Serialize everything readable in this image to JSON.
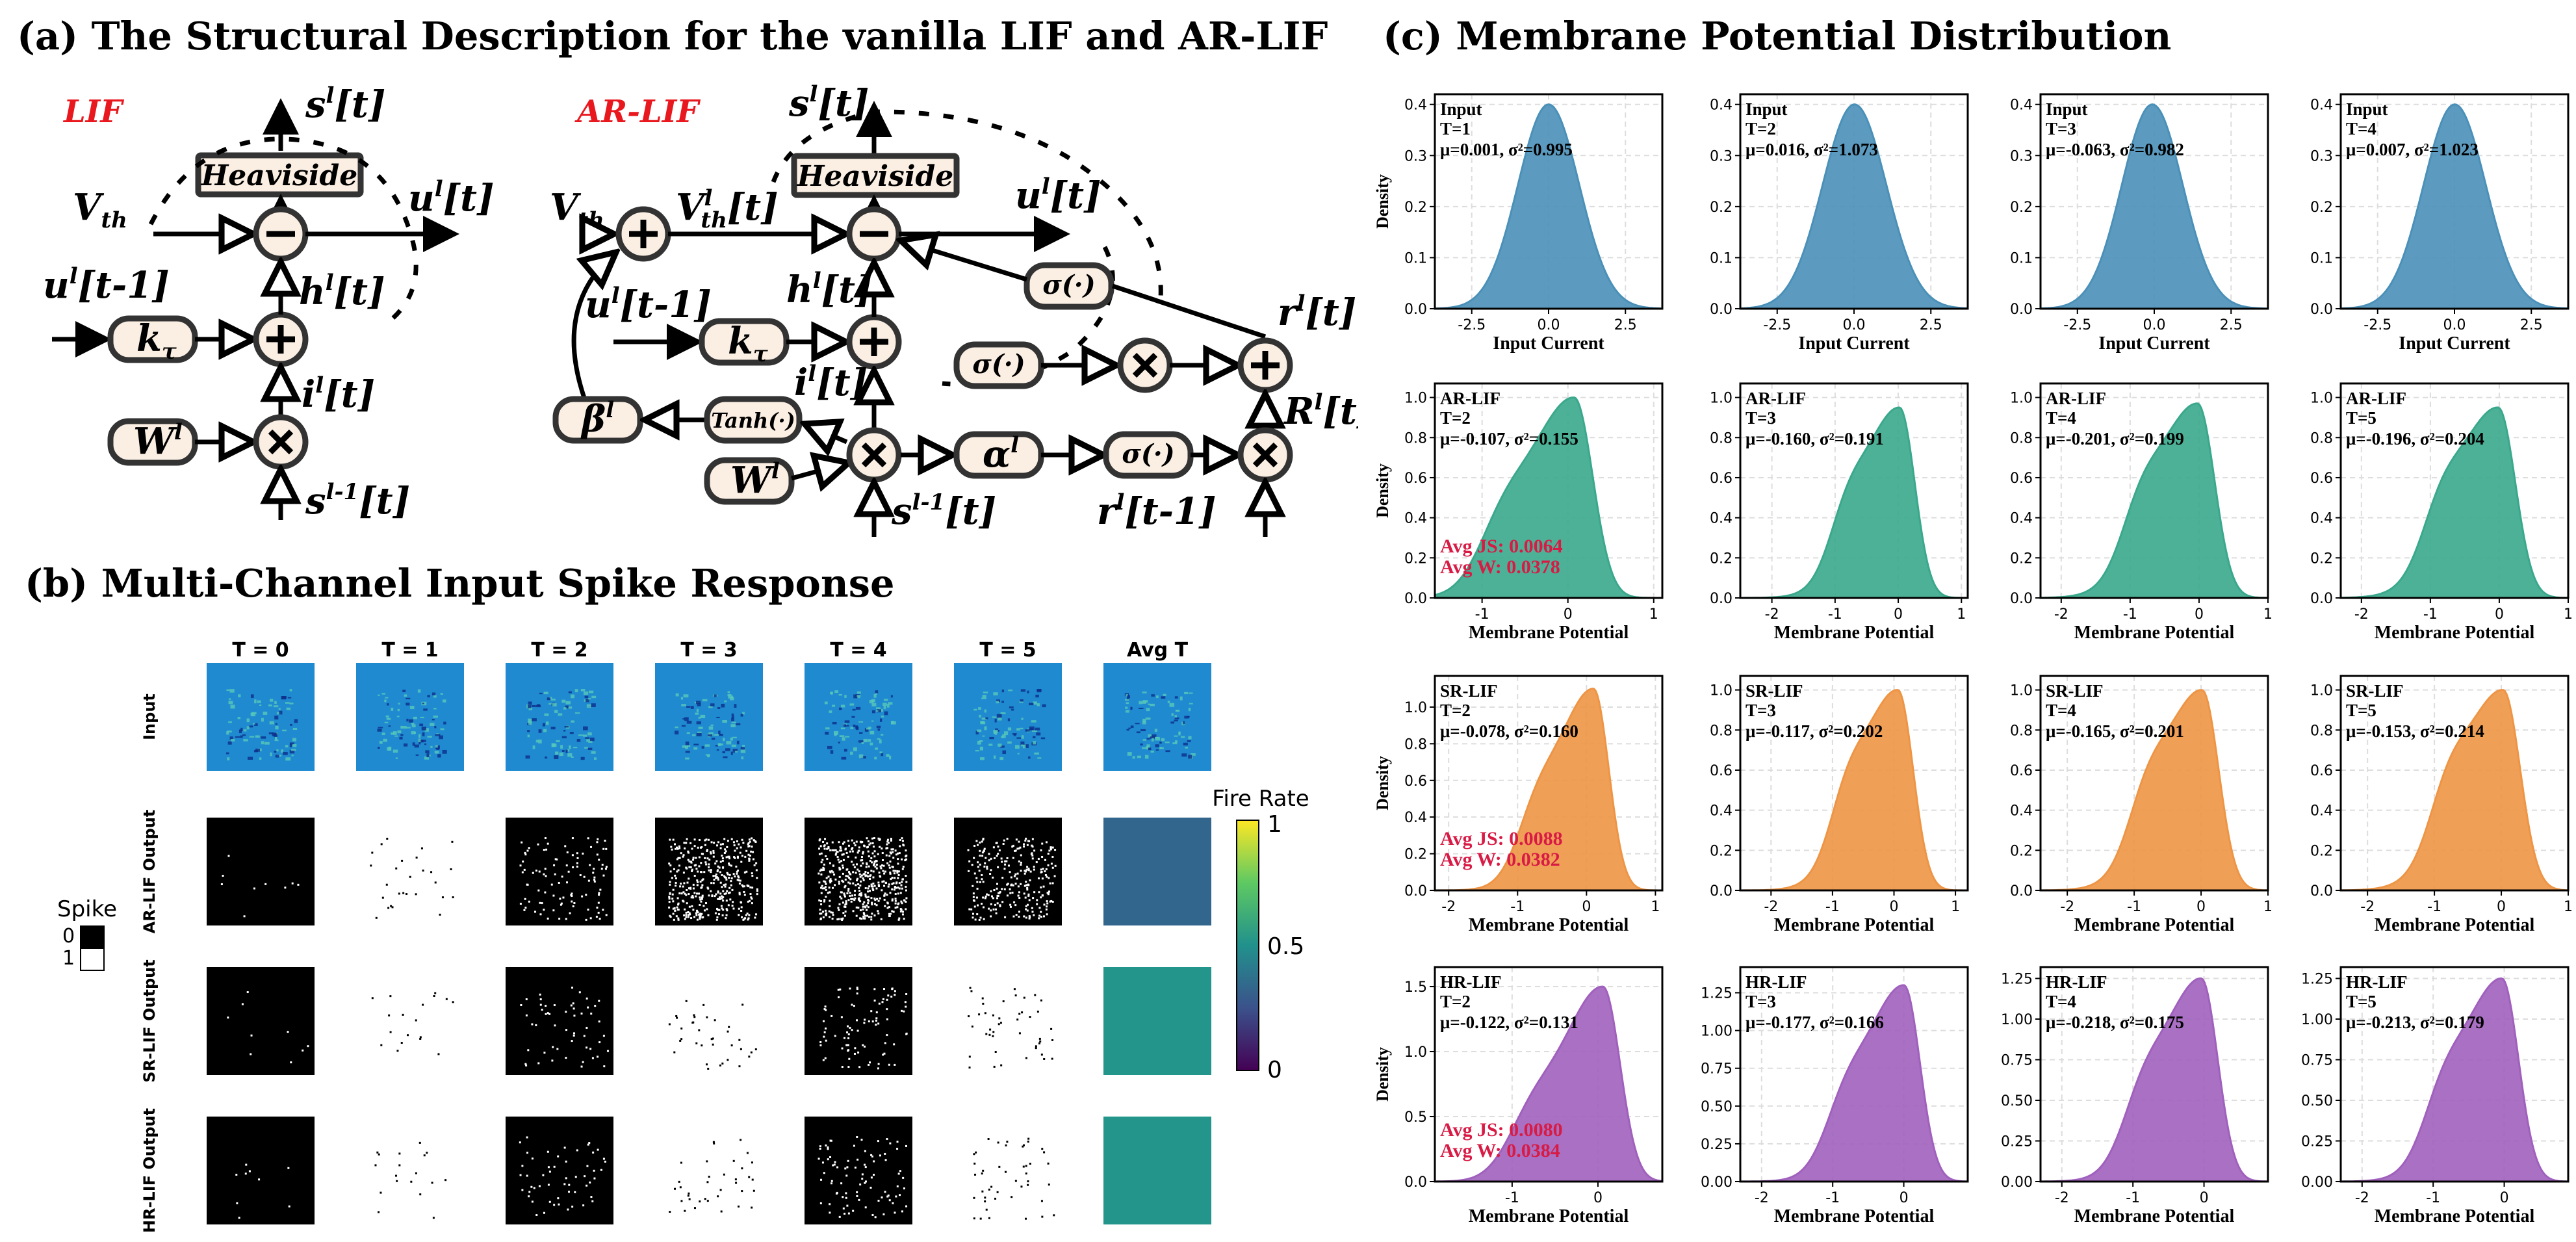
{
  "panel_a": {
    "title": "(a) The Structural Description for the vanilla LIF and AR-LIF",
    "lif": {
      "label": "LIF",
      "heaviside": "Heaviside",
      "vth": "V",
      "vth_sub": "th",
      "s_out": "s",
      "s_out_sup": "l",
      "s_out_arg": "[t]",
      "u_out": "u",
      "u_out_sup": "l",
      "u_out_arg": "[t]",
      "u_prev": "u",
      "u_prev_sup": "l",
      "u_prev_arg": "[t-1]",
      "k": "k",
      "k_sub": "τ",
      "h": "h",
      "h_sup": "l",
      "h_arg": "[t]",
      "i": "i",
      "i_sup": "l",
      "i_arg": "[t]",
      "w": "W",
      "w_sup": "l",
      "s_in": "s",
      "s_in_sup": "l-1",
      "s_in_arg": "[t]"
    },
    "arlif": {
      "label": "AR-LIF",
      "heaviside": "Heaviside",
      "vth": "V",
      "vth_sub": "th",
      "vth_l": "V",
      "vth_l_sup": "l",
      "vth_l_sub": "th",
      "vth_l_arg": "[t]",
      "s_out": "s",
      "s_out_sup": "l",
      "s_out_arg": "[t]",
      "u_out": "u",
      "u_out_sup": "l",
      "u_out_arg": "[t]",
      "u_prev": "u",
      "u_prev_sup": "l",
      "u_prev_arg": "[t-1]",
      "k": "k",
      "k_sub": "τ",
      "h": "h",
      "h_sup": "l",
      "h_arg": "[t]",
      "i": "i",
      "i_sup": "l",
      "i_arg": "[t]",
      "w": "W",
      "w_sup": "l",
      "beta": "β",
      "beta_sup": "l",
      "tanh": "Tanh(·)",
      "sigma": "σ(·)",
      "alpha": "α",
      "alpha_sup": "l",
      "r": "r",
      "r_sup": "l",
      "r_arg": "[t]",
      "R": "R",
      "R_sup": "l",
      "R_arg": "[t]",
      "r_prev": "r",
      "r_prev_sup": "l",
      "r_prev_arg": "[t-1]",
      "s_in": "s",
      "s_in_sup": "l-1",
      "s_in_arg": "[t]"
    }
  },
  "panel_b": {
    "title": "(b) Multi-Channel Input Spike Response",
    "columns": [
      "T = 0",
      "T = 1",
      "T = 2",
      "T = 3",
      "T = 4",
      "T = 5",
      "Avg T"
    ],
    "rows": [
      "Input",
      "AR-LIF Output",
      "SR-LIF Output",
      "HR-LIF Output"
    ],
    "spike_legend": {
      "title": "Spike",
      "zero": "0",
      "one": "1"
    },
    "colorbar": {
      "title": "Fire Rate",
      "ticks": [
        "1",
        "0.5",
        "0"
      ]
    },
    "fire_rate_avg": [
      0.36,
      0.51,
      0.53
    ]
  },
  "panel_c": {
    "title": "(c) Membrane Potential Distribution",
    "ylabel": "Density",
    "colors": {
      "Input": "#4a90b8",
      "AR-LIF": "#3aa88c",
      "SR-LIF": "#ee9545",
      "HR-LIF": "#a060bd"
    },
    "highlight_color": "#d81b45",
    "chart_data": [
      {
        "type": "area",
        "name": "Input",
        "t": "T=1",
        "stats": "μ=0.001, σ²=0.995",
        "mu": 0.001,
        "var": 0.995,
        "xlabel": "Input Current",
        "xlim": [
          -3.7,
          3.7
        ],
        "ylim": [
          0,
          0.42
        ],
        "xticks": [
          "-2.5",
          "0.0",
          "2.5"
        ],
        "xtick_values": [
          -2.5,
          0,
          2.5
        ],
        "yticks": [
          "0.0",
          "0.1",
          "0.2",
          "0.3",
          "0.4"
        ],
        "ytick_values": [
          0,
          0.1,
          0.2,
          0.3,
          0.4
        ],
        "ylabel": "Density"
      },
      {
        "type": "area",
        "name": "Input",
        "t": "T=2",
        "stats": "μ=0.016, σ²=1.073",
        "mu": 0.016,
        "var": 1.073,
        "xlabel": "Input Current",
        "xlim": [
          -3.7,
          3.7
        ],
        "ylim": [
          0,
          0.42
        ],
        "xticks": [
          "-2.5",
          "0.0",
          "2.5"
        ],
        "xtick_values": [
          -2.5,
          0,
          2.5
        ],
        "yticks": [
          "0.0",
          "0.1",
          "0.2",
          "0.3",
          "0.4"
        ],
        "ytick_values": [
          0,
          0.1,
          0.2,
          0.3,
          0.4
        ],
        "ylabel": ""
      },
      {
        "type": "area",
        "name": "Input",
        "t": "T=3",
        "stats": "μ=-0.063, σ²=0.982",
        "mu": -0.063,
        "var": 0.982,
        "xlabel": "Input Current",
        "xlim": [
          -3.7,
          3.7
        ],
        "ylim": [
          0,
          0.42
        ],
        "xticks": [
          "-2.5",
          "0.0",
          "2.5"
        ],
        "xtick_values": [
          -2.5,
          0,
          2.5
        ],
        "yticks": [
          "0.0",
          "0.1",
          "0.2",
          "0.3",
          "0.4"
        ],
        "ytick_values": [
          0,
          0.1,
          0.2,
          0.3,
          0.4
        ],
        "ylabel": ""
      },
      {
        "type": "area",
        "name": "Input",
        "t": "T=4",
        "stats": "μ=0.007, σ²=1.023",
        "mu": 0.007,
        "var": 1.023,
        "xlabel": "Input Current",
        "xlim": [
          -3.7,
          3.7
        ],
        "ylim": [
          0,
          0.42
        ],
        "xticks": [
          "-2.5",
          "0.0",
          "2.5"
        ],
        "xtick_values": [
          -2.5,
          0,
          2.5
        ],
        "yticks": [
          "0.0",
          "0.1",
          "0.2",
          "0.3",
          "0.4"
        ],
        "ytick_values": [
          0,
          0.1,
          0.2,
          0.3,
          0.4
        ],
        "ylabel": ""
      },
      {
        "type": "area",
        "name": "AR-LIF",
        "t": "T=2",
        "stats": "μ=-0.107, σ²=0.155",
        "mu": -0.107,
        "var": 0.155,
        "peak": 1.0,
        "xlabel": "Membrane Potential",
        "xlim": [
          -1.55,
          1.1
        ],
        "ylim": [
          0,
          1.07
        ],
        "xticks": [
          "-1",
          "0",
          "1"
        ],
        "xtick_values": [
          -1,
          0,
          1
        ],
        "yticks": [
          "0.0",
          "0.2",
          "0.4",
          "0.6",
          "0.8",
          "1.0"
        ],
        "ytick_values": [
          0,
          0.2,
          0.4,
          0.6,
          0.8,
          1.0
        ],
        "ylabel": "Density",
        "avg_js": "Avg JS: 0.0064",
        "avg_w": "Avg W:  0.0378"
      },
      {
        "type": "area",
        "name": "AR-LIF",
        "t": "T=3",
        "stats": "μ=-0.160, σ²=0.191",
        "mu": -0.16,
        "var": 0.191,
        "peak": 0.95,
        "xlabel": "Membrane Potential",
        "xlim": [
          -2.5,
          1.1
        ],
        "ylim": [
          0,
          1.07
        ],
        "xticks": [
          "-2",
          "-1",
          "0",
          "1"
        ],
        "xtick_values": [
          -2,
          -1,
          0,
          1
        ],
        "yticks": [
          "0.0",
          "0.2",
          "0.4",
          "0.6",
          "0.8",
          "1.0"
        ],
        "ytick_values": [
          0,
          0.2,
          0.4,
          0.6,
          0.8,
          1.0
        ],
        "ylabel": ""
      },
      {
        "type": "area",
        "name": "AR-LIF",
        "t": "T=4",
        "stats": "μ=-0.201, σ²=0.199",
        "mu": -0.201,
        "var": 0.199,
        "peak": 0.97,
        "xlabel": "Membrane Potential",
        "xlim": [
          -2.3,
          1.0
        ],
        "ylim": [
          0,
          1.07
        ],
        "xticks": [
          "-2",
          "-1",
          "0",
          "1"
        ],
        "xtick_values": [
          -2,
          -1,
          0,
          1
        ],
        "yticks": [
          "0.0",
          "0.2",
          "0.4",
          "0.6",
          "0.8",
          "1.0"
        ],
        "ytick_values": [
          0,
          0.2,
          0.4,
          0.6,
          0.8,
          1.0
        ],
        "ylabel": ""
      },
      {
        "type": "area",
        "name": "AR-LIF",
        "t": "T=5",
        "stats": "μ=-0.196, σ²=0.204",
        "mu": -0.196,
        "var": 0.204,
        "peak": 0.95,
        "xlabel": "Membrane Potential",
        "xlim": [
          -2.3,
          1.0
        ],
        "ylim": [
          0,
          1.07
        ],
        "xticks": [
          "-2",
          "-1",
          "0",
          "1"
        ],
        "xtick_values": [
          -2,
          -1,
          0,
          1
        ],
        "yticks": [
          "0.0",
          "0.2",
          "0.4",
          "0.6",
          "0.8",
          "1.0"
        ],
        "ytick_values": [
          0,
          0.2,
          0.4,
          0.6,
          0.8,
          1.0
        ],
        "ylabel": ""
      },
      {
        "type": "area",
        "name": "SR-LIF",
        "t": "T=2",
        "stats": "μ=-0.078, σ²=0.160",
        "mu": -0.078,
        "var": 0.16,
        "peak": 1.1,
        "xlabel": "Membrane Potential",
        "xlim": [
          -2.2,
          1.1
        ],
        "ylim": [
          0,
          1.17
        ],
        "xticks": [
          "-2",
          "-1",
          "0",
          "1"
        ],
        "xtick_values": [
          -2,
          -1,
          0,
          1
        ],
        "yticks": [
          "0.0",
          "0.2",
          "0.4",
          "0.6",
          "0.8",
          "1.0"
        ],
        "ytick_values": [
          0,
          0.2,
          0.4,
          0.6,
          0.8,
          1.0
        ],
        "ylabel": "Density",
        "avg_js": "Avg JS: 0.0088",
        "avg_w": "Avg W:  0.0382"
      },
      {
        "type": "area",
        "name": "SR-LIF",
        "t": "T=3",
        "stats": "μ=-0.117, σ²=0.202",
        "mu": -0.117,
        "var": 0.202,
        "peak": 1.0,
        "xlabel": "Membrane Potential",
        "xlim": [
          -2.5,
          1.2
        ],
        "ylim": [
          0,
          1.07
        ],
        "xticks": [
          "-2",
          "-1",
          "0",
          "1"
        ],
        "xtick_values": [
          -2,
          -1,
          0,
          1
        ],
        "yticks": [
          "0.0",
          "0.2",
          "0.4",
          "0.6",
          "0.8",
          "1.0"
        ],
        "ytick_values": [
          0,
          0.2,
          0.4,
          0.6,
          0.8,
          1.0
        ],
        "ylabel": ""
      },
      {
        "type": "area",
        "name": "SR-LIF",
        "t": "T=4",
        "stats": "μ=-0.165, σ²=0.201",
        "mu": -0.165,
        "var": 0.201,
        "peak": 1.0,
        "xlabel": "Membrane Potential",
        "xlim": [
          -2.4,
          1.0
        ],
        "ylim": [
          0,
          1.07
        ],
        "xticks": [
          "-2",
          "-1",
          "0",
          "1"
        ],
        "xtick_values": [
          -2,
          -1,
          0,
          1
        ],
        "yticks": [
          "0.0",
          "0.2",
          "0.4",
          "0.6",
          "0.8",
          "1.0"
        ],
        "ytick_values": [
          0,
          0.2,
          0.4,
          0.6,
          0.8,
          1.0
        ],
        "ylabel": ""
      },
      {
        "type": "area",
        "name": "SR-LIF",
        "t": "T=5",
        "stats": "μ=-0.153, σ²=0.214",
        "mu": -0.153,
        "var": 0.214,
        "peak": 1.0,
        "xlabel": "Membrane Potential",
        "xlim": [
          -2.4,
          1.0
        ],
        "ylim": [
          0,
          1.07
        ],
        "xticks": [
          "-2",
          "-1",
          "0",
          "1"
        ],
        "xtick_values": [
          -2,
          -1,
          0,
          1
        ],
        "yticks": [
          "0.0",
          "0.2",
          "0.4",
          "0.6",
          "0.8",
          "1.0"
        ],
        "ytick_values": [
          0,
          0.2,
          0.4,
          0.6,
          0.8,
          1.0
        ],
        "ylabel": ""
      },
      {
        "type": "area",
        "name": "HR-LIF",
        "t": "T=2",
        "stats": "μ=-0.122, σ²=0.131",
        "mu": -0.122,
        "var": 0.131,
        "peak": 1.5,
        "xlabel": "Membrane Potential",
        "xlim": [
          -1.9,
          0.75
        ],
        "ylim": [
          0,
          1.65
        ],
        "xticks": [
          "-1",
          "0"
        ],
        "xtick_values": [
          -1,
          0
        ],
        "yticks": [
          "0.0",
          "0.5",
          "1.0",
          "1.5"
        ],
        "ytick_values": [
          0,
          0.5,
          1.0,
          1.5
        ],
        "ylabel": "Density",
        "avg_js": "Avg JS: 0.0080",
        "avg_w": "Avg W:  0.0384"
      },
      {
        "type": "area",
        "name": "HR-LIF",
        "t": "T=3",
        "stats": "μ=-0.177, σ²=0.166",
        "mu": -0.177,
        "var": 0.166,
        "peak": 1.3,
        "xlabel": "Membrane Potential",
        "xlim": [
          -2.3,
          0.9
        ],
        "ylim": [
          0,
          1.42
        ],
        "xticks": [
          "-2",
          "-1",
          "0"
        ],
        "xtick_values": [
          -2,
          -1,
          0
        ],
        "yticks": [
          "0.00",
          "0.25",
          "0.50",
          "0.75",
          "1.00",
          "1.25"
        ],
        "ytick_values": [
          0,
          0.25,
          0.5,
          0.75,
          1.0,
          1.25
        ],
        "ylabel": ""
      },
      {
        "type": "area",
        "name": "HR-LIF",
        "t": "T=4",
        "stats": "μ=-0.218, σ²=0.175",
        "mu": -0.218,
        "var": 0.175,
        "peak": 1.25,
        "xlabel": "Membrane Potential",
        "xlim": [
          -2.3,
          0.9
        ],
        "ylim": [
          0,
          1.32
        ],
        "xticks": [
          "-2",
          "-1",
          "0"
        ],
        "xtick_values": [
          -2,
          -1,
          0
        ],
        "yticks": [
          "0.00",
          "0.25",
          "0.50",
          "0.75",
          "1.00",
          "1.25"
        ],
        "ytick_values": [
          0,
          0.25,
          0.5,
          0.75,
          1.0,
          1.25
        ],
        "ylabel": ""
      },
      {
        "type": "area",
        "name": "HR-LIF",
        "t": "T=5",
        "stats": "μ=-0.213, σ²=0.179",
        "mu": -0.213,
        "var": 0.179,
        "peak": 1.25,
        "xlabel": "Membrane Potential",
        "xlim": [
          -2.3,
          0.9
        ],
        "ylim": [
          0,
          1.32
        ],
        "xticks": [
          "-2",
          "-1",
          "0"
        ],
        "xtick_values": [
          -2,
          -1,
          0
        ],
        "yticks": [
          "0.00",
          "0.25",
          "0.50",
          "0.75",
          "1.00",
          "1.25"
        ],
        "ytick_values": [
          0,
          0.25,
          0.5,
          0.75,
          1.0,
          1.25
        ],
        "ylabel": ""
      }
    ]
  }
}
